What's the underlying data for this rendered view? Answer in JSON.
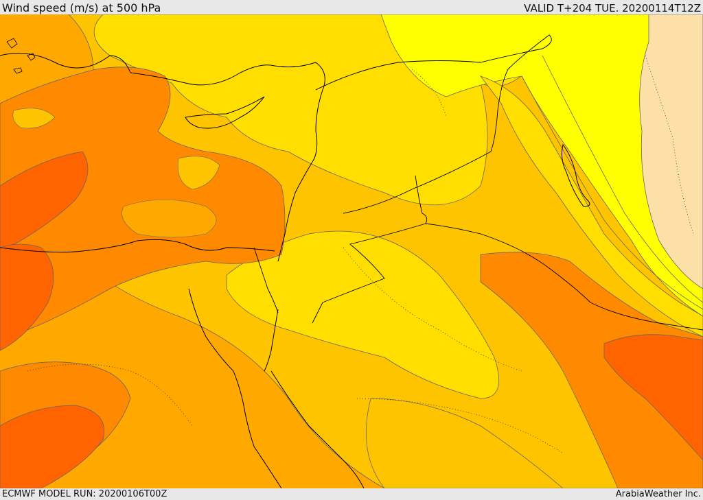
{
  "header": {
    "title": "Wind speed (m/s) at 500 hPa",
    "valid_time": "VALID T+204 TUE. 20200114T12Z"
  },
  "footer": {
    "model_run": "ECMWF MODEL RUN: 20200106T00Z",
    "credit": "ArabiaWeather Inc."
  },
  "map": {
    "field": "wind speed at 500 hPa",
    "colors": {
      "very_light": "#fde0a8",
      "light_yellow": "#ffff00",
      "yellow": "#ffde00",
      "light_orange": "#ffc400",
      "orange": "#ffa800",
      "dark_orange": "#ff8a00",
      "red_orange": "#ff6400",
      "coastline": "#000000",
      "contour": "#555555"
    }
  }
}
